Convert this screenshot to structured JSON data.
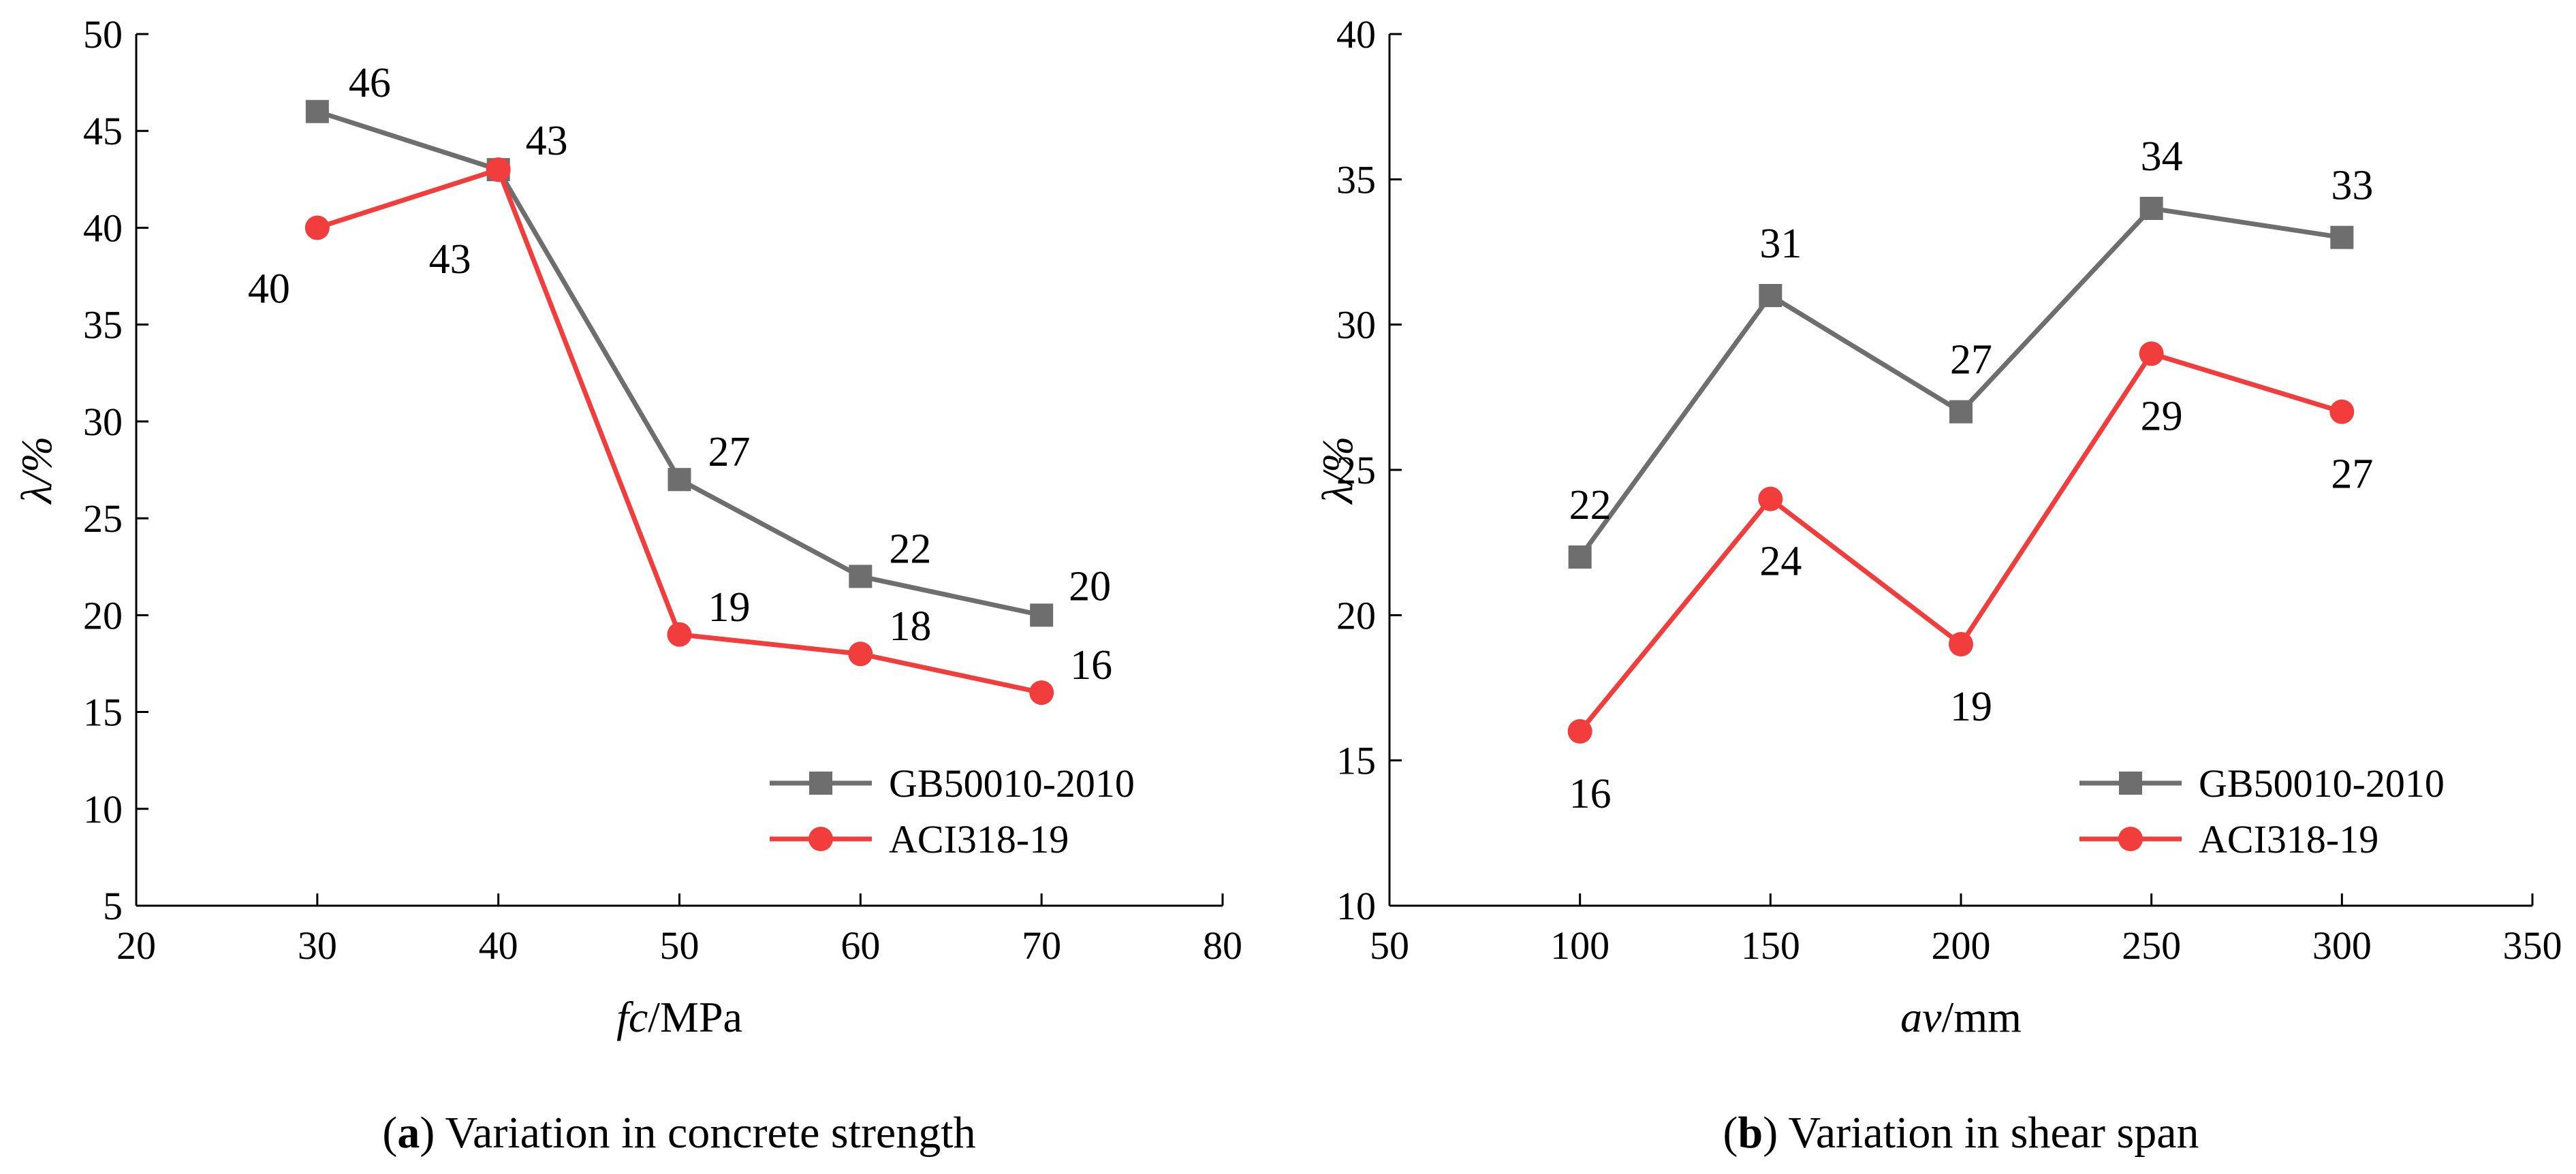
{
  "chart_data": [
    {
      "panel": "a",
      "type": "line",
      "caption": {
        "letter": "a",
        "text": " Variation in concrete strength"
      },
      "xlabel": {
        "var": "fc",
        "unit": "/MPa"
      },
      "ylabel": "λ/%",
      "xlim": [
        20,
        80
      ],
      "ylim": [
        5,
        50
      ],
      "xticks": [
        20,
        30,
        40,
        50,
        60,
        70,
        80
      ],
      "yticks": [
        5,
        10,
        15,
        20,
        25,
        30,
        35,
        40,
        45,
        50
      ],
      "x": [
        30,
        40,
        50,
        60,
        70
      ],
      "grid": false,
      "legend_position": "lower-right",
      "series": [
        {
          "name": "GB50010-2010",
          "marker": "square",
          "color": "#6e6e6e",
          "values": [
            46,
            43,
            27,
            22,
            20
          ],
          "labels": [
            "46",
            "43",
            "27",
            "22",
            "20"
          ]
        },
        {
          "name": "ACI318-19",
          "marker": "circle",
          "color": "#f23d3d",
          "values": [
            40,
            43,
            19,
            18,
            16
          ],
          "labels": [
            "40",
            "43",
            "19",
            "18",
            "16"
          ]
        }
      ]
    },
    {
      "panel": "b",
      "type": "line",
      "caption": {
        "letter": "b",
        "text": " Variation in shear span"
      },
      "xlabel": {
        "var": "av",
        "unit": "/mm"
      },
      "ylabel": "λ/%",
      "xlim": [
        50,
        350
      ],
      "ylim": [
        10,
        40
      ],
      "xticks": [
        50,
        100,
        150,
        200,
        250,
        300,
        350
      ],
      "yticks": [
        10,
        15,
        20,
        25,
        30,
        35,
        40
      ],
      "x": [
        100,
        150,
        200,
        250,
        300
      ],
      "grid": false,
      "legend_position": "lower-right",
      "series": [
        {
          "name": "GB50010-2010",
          "marker": "square",
          "color": "#6e6e6e",
          "values": [
            22,
            31,
            27,
            34,
            33
          ],
          "labels": [
            "22",
            "31",
            "27",
            "34",
            "33"
          ]
        },
        {
          "name": "ACI318-19",
          "marker": "circle",
          "color": "#f23d3d",
          "values": [
            16,
            24,
            19,
            29,
            27
          ],
          "labels": [
            "16",
            "24",
            "19",
            "29",
            "27"
          ]
        }
      ]
    }
  ]
}
